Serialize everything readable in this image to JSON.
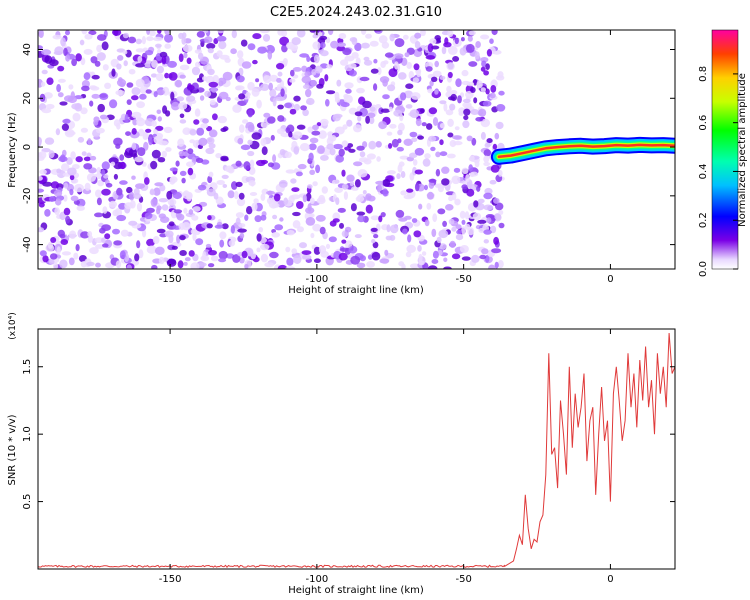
{
  "title": "C2E5.2024.243.02.31.G10",
  "colors": {
    "signal": "#e03a3a",
    "axis": "#000000",
    "noise": "#7a2be6"
  },
  "chart_data": [
    {
      "type": "heatmap",
      "xlabel": "Height of straight line (km)",
      "ylabel": "Frequency (Hz)",
      "xlim": [
        -195,
        22
      ],
      "ylim": [
        -50,
        48
      ],
      "xticks": [
        -150,
        -100,
        -50,
        0
      ],
      "yticks": [
        -40,
        -20,
        0,
        20,
        40
      ],
      "colorbar": {
        "label": "Normalized spectral amplitude",
        "range": [
          0,
          0.98
        ],
        "ticks": [
          0.0,
          0.2,
          0.4,
          0.6,
          0.8
        ],
        "tick_labels": [
          "0.0",
          "0.2",
          "0.4",
          "0.6",
          "0.8"
        ]
      },
      "noise_region_x": [
        -195,
        -37
      ],
      "signal_trace": {
        "x": [
          -38,
          -34,
          -30,
          -26,
          -22,
          -18,
          -14,
          -10,
          -6,
          -2,
          2,
          6,
          10,
          14,
          18,
          22
        ],
        "freq": [
          -4,
          -3.5,
          -2.5,
          -1.5,
          -0.5,
          0,
          0.3,
          0.5,
          0.2,
          0.4,
          0.8,
          0.6,
          0.9,
          0.7,
          0.8,
          0.5
        ]
      },
      "grid": false
    },
    {
      "type": "line",
      "xlabel": "Height of straight line (km)",
      "ylabel": "SNR (10 * v/v)",
      "y_multiplier": "(x10⁴)",
      "xlim": [
        -195,
        22
      ],
      "ylim": [
        0,
        1.78
      ],
      "xticks": [
        -150,
        -100,
        -50,
        0
      ],
      "yticks": [
        0.5,
        1.0,
        1.5
      ],
      "ytick_labels": [
        "0.5",
        "1.0",
        "1.5"
      ],
      "series": [
        {
          "x": [
            -195,
            -36,
            -33,
            -32,
            -31,
            -30,
            -29,
            -28,
            -27,
            -26,
            -25,
            -24,
            -23,
            -22,
            -21,
            -20,
            -19,
            -18,
            -17,
            -16,
            -15,
            -14,
            -13,
            -12,
            -11,
            -10,
            -9,
            -8,
            -7,
            -6,
            -5,
            -4,
            -3,
            -2,
            -1,
            0,
            1,
            2,
            3,
            4,
            5,
            6,
            7,
            8,
            9,
            10,
            11,
            12,
            13,
            14,
            15,
            16,
            17,
            18,
            19,
            20,
            21,
            22
          ],
          "y": [
            0.02,
            0.02,
            0.06,
            0.15,
            0.25,
            0.18,
            0.55,
            0.3,
            0.15,
            0.22,
            0.2,
            0.35,
            0.4,
            0.7,
            1.6,
            0.85,
            0.9,
            0.6,
            1.25,
            1.0,
            0.7,
            1.5,
            0.9,
            1.3,
            1.05,
            1.2,
            1.45,
            0.8,
            1.1,
            1.2,
            0.55,
            1.0,
            1.35,
            0.95,
            1.1,
            0.5,
            1.3,
            1.5,
            1.25,
            0.95,
            1.1,
            1.6,
            1.2,
            1.45,
            1.05,
            1.55,
            1.25,
            1.65,
            1.2,
            1.4,
            1.0,
            1.6,
            1.3,
            1.5,
            1.2,
            1.75,
            1.45,
            1.5
          ]
        }
      ],
      "grid": false
    }
  ]
}
